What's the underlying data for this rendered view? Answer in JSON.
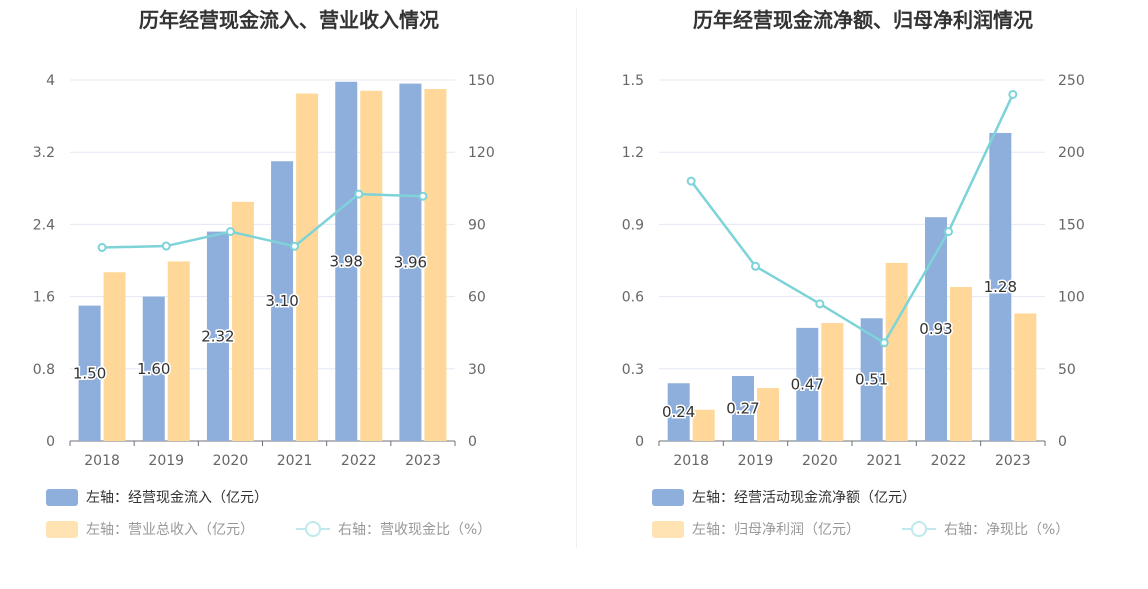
{
  "chart_data": [
    {
      "type": "bar",
      "title": "历年经营现金流入、营业收入情况",
      "categories": [
        "2018",
        "2019",
        "2020",
        "2021",
        "2022",
        "2023"
      ],
      "left_axis": {
        "ylim": [
          0,
          4
        ],
        "ticks": [
          "0",
          "0.8",
          "1.6",
          "2.4",
          "3.2",
          "4"
        ]
      },
      "right_axis": {
        "ylim": [
          0,
          150
        ],
        "ticks": [
          "0",
          "30",
          "60",
          "90",
          "120",
          "150"
        ]
      },
      "series": [
        {
          "name": "左轴：经营现金流入（亿元）",
          "kind": "bar",
          "axis": "left",
          "color": "#8eaedc",
          "values": [
            1.5,
            1.6,
            2.32,
            3.1,
            3.98,
            3.96
          ],
          "labels": [
            "1.50",
            "1.60",
            "2.32",
            "3.10",
            "3.98",
            "3.96"
          ]
        },
        {
          "name": "左轴：营业总收入（亿元）",
          "kind": "bar",
          "axis": "left",
          "color": "#ffd899",
          "values": [
            1.87,
            1.99,
            2.65,
            3.85,
            3.88,
            3.9
          ]
        },
        {
          "name": "右轴：营收现金比（%）",
          "kind": "line",
          "axis": "right",
          "color": "#7dd3d8",
          "values": [
            80.4,
            81.0,
            87.0,
            80.9,
            102.6,
            101.7
          ]
        }
      ],
      "grid": true,
      "legend_position": "bottom"
    },
    {
      "type": "bar",
      "title": "历年经营现金流净额、归母净利润情况",
      "categories": [
        "2018",
        "2019",
        "2020",
        "2021",
        "2022",
        "2023"
      ],
      "left_axis": {
        "ylim": [
          0,
          1.5
        ],
        "ticks": [
          "0",
          "0.3",
          "0.6",
          "0.9",
          "1.2",
          "1.5"
        ]
      },
      "right_axis": {
        "ylim": [
          0,
          250
        ],
        "ticks": [
          "0",
          "50",
          "100",
          "150",
          "200",
          "250"
        ]
      },
      "series": [
        {
          "name": "左轴：经营活动现金流净额（亿元）",
          "kind": "bar",
          "axis": "left",
          "color": "#8eaedc",
          "values": [
            0.24,
            0.27,
            0.47,
            0.51,
            0.93,
            1.28
          ],
          "labels": [
            "0.24",
            "0.27",
            "0.47",
            "0.51",
            "0.93",
            "1.28"
          ]
        },
        {
          "name": "左轴：归母净利润（亿元）",
          "kind": "bar",
          "axis": "left",
          "color": "#ffd899",
          "values": [
            0.13,
            0.22,
            0.49,
            0.74,
            0.64,
            0.53
          ]
        },
        {
          "name": "右轴：净现比（%）",
          "kind": "line",
          "axis": "right",
          "color": "#7dd3d8",
          "values": [
            180,
            121,
            95,
            68,
            145,
            240
          ]
        }
      ],
      "grid": true,
      "legend_position": "bottom"
    }
  ]
}
